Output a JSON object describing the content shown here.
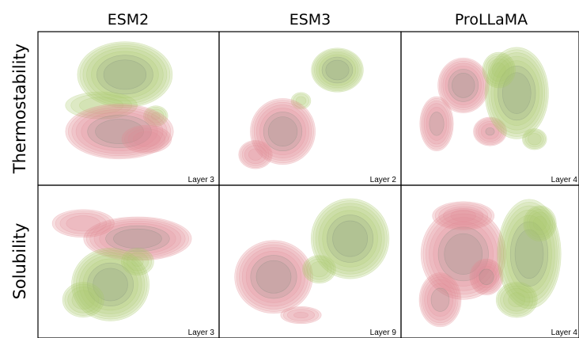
{
  "chart_data": {
    "type": "contour-grid",
    "columns": [
      "ESM2",
      "ESM3",
      "ProLLaMA"
    ],
    "rows": [
      "Thermostability",
      "Solubility"
    ],
    "colors": {
      "group_a": "#e28b95",
      "group_b": "#a9c96a",
      "core": "#7a8a7a"
    },
    "panels": [
      {
        "layer": "Layer 3",
        "blobs": [
          {
            "color": "group_b",
            "peaks": [
              [
                0.48,
                0.28,
                0.22,
                0.18,
                1.0
              ],
              [
                0.35,
                0.48,
                0.18,
                0.08,
                0.35
              ],
              [
                0.65,
                0.55,
                0.06,
                0.06,
                0.4
              ]
            ]
          },
          {
            "color": "group_a",
            "peaks": [
              [
                0.45,
                0.65,
                0.25,
                0.15,
                1.0
              ],
              [
                0.6,
                0.7,
                0.12,
                0.08,
                0.5
              ]
            ]
          }
        ]
      },
      {
        "layer": "Layer 2",
        "blobs": [
          {
            "color": "group_b",
            "peaks": [
              [
                0.65,
                0.25,
                0.12,
                0.12,
                1.0
              ],
              [
                0.45,
                0.45,
                0.05,
                0.05,
                0.3
              ]
            ]
          },
          {
            "color": "group_a",
            "peaks": [
              [
                0.35,
                0.65,
                0.15,
                0.18,
                1.0
              ],
              [
                0.2,
                0.8,
                0.08,
                0.08,
                0.6
              ]
            ]
          }
        ]
      },
      {
        "layer": "Layer 4",
        "blobs": [
          {
            "color": "group_a",
            "peaks": [
              [
                0.35,
                0.35,
                0.12,
                0.15,
                1.0
              ],
              [
                0.2,
                0.6,
                0.08,
                0.15,
                0.8
              ],
              [
                0.5,
                0.65,
                0.08,
                0.08,
                0.7
              ]
            ]
          },
          {
            "color": "group_b",
            "peaks": [
              [
                0.65,
                0.4,
                0.15,
                0.25,
                1.0
              ],
              [
                0.55,
                0.25,
                0.08,
                0.1,
                0.6
              ],
              [
                0.75,
                0.7,
                0.06,
                0.06,
                0.5
              ]
            ]
          }
        ]
      },
      {
        "layer": "Layer 3",
        "blobs": [
          {
            "color": "group_a",
            "peaks": [
              [
                0.55,
                0.35,
                0.25,
                0.12,
                1.0
              ],
              [
                0.25,
                0.25,
                0.15,
                0.08,
                0.5
              ]
            ]
          },
          {
            "color": "group_b",
            "peaks": [
              [
                0.4,
                0.65,
                0.18,
                0.2,
                1.0
              ],
              [
                0.25,
                0.75,
                0.1,
                0.1,
                0.5
              ],
              [
                0.55,
                0.5,
                0.08,
                0.08,
                0.4
              ]
            ]
          }
        ]
      },
      {
        "layer": "Layer 9",
        "blobs": [
          {
            "color": "group_a",
            "peaks": [
              [
                0.3,
                0.6,
                0.18,
                0.2,
                1.0
              ],
              [
                0.45,
                0.85,
                0.1,
                0.05,
                0.4
              ]
            ]
          },
          {
            "color": "group_b",
            "peaks": [
              [
                0.72,
                0.35,
                0.18,
                0.22,
                1.0
              ],
              [
                0.55,
                0.55,
                0.08,
                0.08,
                0.5
              ]
            ]
          }
        ]
      },
      {
        "layer": "Layer 4",
        "blobs": [
          {
            "color": "group_a",
            "peaks": [
              [
                0.35,
                0.45,
                0.2,
                0.25,
                1.0
              ],
              [
                0.22,
                0.75,
                0.1,
                0.15,
                0.8
              ],
              [
                0.48,
                0.6,
                0.08,
                0.1,
                0.8
              ],
              [
                0.35,
                0.2,
                0.15,
                0.08,
                0.6
              ]
            ]
          },
          {
            "color": "group_b",
            "peaks": [
              [
                0.72,
                0.45,
                0.15,
                0.3,
                1.0
              ],
              [
                0.65,
                0.75,
                0.1,
                0.1,
                0.6
              ],
              [
                0.78,
                0.25,
                0.08,
                0.1,
                0.6
              ]
            ]
          }
        ]
      }
    ]
  }
}
